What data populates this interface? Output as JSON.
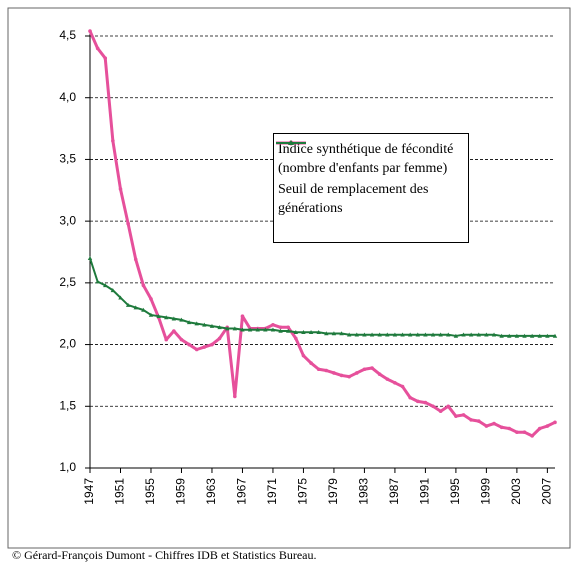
{
  "chart_data": {
    "type": "line",
    "x": [
      1947,
      1948,
      1949,
      1950,
      1951,
      1952,
      1953,
      1954,
      1955,
      1956,
      1957,
      1958,
      1959,
      1960,
      1961,
      1962,
      1963,
      1964,
      1965,
      1966,
      1967,
      1968,
      1969,
      1970,
      1971,
      1972,
      1973,
      1974,
      1975,
      1976,
      1977,
      1978,
      1979,
      1980,
      1981,
      1982,
      1983,
      1984,
      1985,
      1986,
      1987,
      1988,
      1989,
      1990,
      1991,
      1992,
      1993,
      1994,
      1995,
      1996,
      1997,
      1998,
      1999,
      2000,
      2001,
      2002,
      2003,
      2004,
      2005,
      2006,
      2007,
      2008
    ],
    "series": [
      {
        "name": "Indice synthétique de fécondité (nombre d'enfants par femme)",
        "color": "#e6509b",
        "values": [
          4.54,
          4.4,
          4.32,
          3.65,
          3.26,
          2.98,
          2.69,
          2.48,
          2.37,
          2.22,
          2.04,
          2.11,
          2.04,
          2.0,
          1.96,
          1.98,
          2.0,
          2.05,
          2.14,
          1.58,
          2.23,
          2.13,
          2.13,
          2.13,
          2.16,
          2.14,
          2.14,
          2.05,
          1.91,
          1.85,
          1.8,
          1.79,
          1.77,
          1.75,
          1.74,
          1.77,
          1.8,
          1.81,
          1.76,
          1.72,
          1.69,
          1.66,
          1.57,
          1.54,
          1.53,
          1.5,
          1.46,
          1.5,
          1.42,
          1.43,
          1.39,
          1.38,
          1.34,
          1.36,
          1.33,
          1.32,
          1.29,
          1.29,
          1.26,
          1.32,
          1.34,
          1.37
        ]
      },
      {
        "name": "Seuil de remplacement des générations",
        "color": "#1e7a3c",
        "values": [
          2.7,
          2.51,
          2.48,
          2.44,
          2.38,
          2.32,
          2.3,
          2.28,
          2.24,
          2.23,
          2.22,
          2.21,
          2.2,
          2.18,
          2.17,
          2.16,
          2.15,
          2.14,
          2.13,
          2.13,
          2.12,
          2.12,
          2.12,
          2.12,
          2.12,
          2.11,
          2.11,
          2.1,
          2.1,
          2.1,
          2.1,
          2.09,
          2.09,
          2.09,
          2.08,
          2.08,
          2.08,
          2.08,
          2.08,
          2.08,
          2.08,
          2.08,
          2.08,
          2.08,
          2.08,
          2.08,
          2.08,
          2.08,
          2.07,
          2.08,
          2.08,
          2.08,
          2.08,
          2.08,
          2.07,
          2.07,
          2.07,
          2.07,
          2.07,
          2.07,
          2.07,
          2.07
        ]
      }
    ],
    "xlim": [
      1947,
      2008
    ],
    "xticks": [
      1947,
      1951,
      1955,
      1959,
      1963,
      1967,
      1971,
      1975,
      1979,
      1983,
      1987,
      1991,
      1995,
      1999,
      2003,
      2007
    ],
    "ylim": [
      1,
      4.5
    ],
    "yticks": [
      {
        "value": 1,
        "label": "1,0"
      },
      {
        "value": 1.5,
        "label": "1,5"
      },
      {
        "value": 2,
        "label": "2,0"
      },
      {
        "value": 2.5,
        "label": "2,5"
      },
      {
        "value": 3,
        "label": "3,0"
      },
      {
        "value": 3.5,
        "label": "3,5"
      },
      {
        "value": 4,
        "label": "4,0"
      },
      {
        "value": 4.5,
        "label": "4,5"
      }
    ],
    "grid": true,
    "source": "© Gérard-François Dumont - Chiffres IDB et Statistics Bureau."
  }
}
